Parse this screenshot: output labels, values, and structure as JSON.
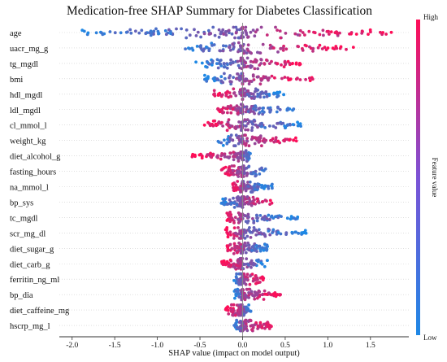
{
  "chart_data": {
    "type": "scatter",
    "title": "Medication-free SHAP Summary for Diabetes Classification",
    "xlabel": "SHAP value (impact on model output)",
    "xlim": [
      -2.15,
      1.95
    ],
    "xticks": [
      "-2.0",
      "-1.5",
      "-1.0",
      "-0.5",
      "0.0",
      "0.5",
      "1.0",
      "1.5"
    ],
    "xtick_values": [
      -2.0,
      -1.5,
      -1.0,
      -0.5,
      0.0,
      0.5,
      1.0,
      1.5
    ],
    "colorbar": {
      "label": "Feature value",
      "high": "High",
      "low": "Low",
      "color_low": "#1e88e5",
      "color_high": "#ff0d57"
    },
    "features": [
      {
        "name": "age",
        "neg_min": -1.9,
        "pos_max": 1.75,
        "neg_color": "low",
        "pos_color": "high"
      },
      {
        "name": "uacr_mg_g",
        "neg_min": -0.7,
        "pos_max": 1.3,
        "neg_color": "low",
        "pos_color": "high"
      },
      {
        "name": "tg_mgdl",
        "neg_min": -0.55,
        "pos_max": 0.7,
        "neg_color": "low",
        "pos_color": "high"
      },
      {
        "name": "bmi",
        "neg_min": -0.45,
        "pos_max": 0.85,
        "neg_color": "low",
        "pos_color": "high"
      },
      {
        "name": "hdl_mgdl",
        "neg_min": -0.35,
        "pos_max": 0.5,
        "neg_color": "high",
        "pos_color": "low"
      },
      {
        "name": "ldl_mgdl",
        "neg_min": -0.3,
        "pos_max": 0.6,
        "neg_color": "high",
        "pos_color": "low"
      },
      {
        "name": "cl_mmol_l",
        "neg_min": -0.45,
        "pos_max": 0.7,
        "neg_color": "high",
        "pos_color": "low"
      },
      {
        "name": "weight_kg",
        "neg_min": -0.3,
        "pos_max": 0.65,
        "neg_color": "low",
        "pos_color": "high"
      },
      {
        "name": "diet_alcohol_g",
        "neg_min": -0.6,
        "pos_max": 0.1,
        "neg_color": "high",
        "pos_color": "low"
      },
      {
        "name": "fasting_hours",
        "neg_min": -0.25,
        "pos_max": 0.3,
        "neg_color": "high",
        "pos_color": "low"
      },
      {
        "name": "na_mmol_l",
        "neg_min": -0.12,
        "pos_max": 0.35,
        "neg_color": "high",
        "pos_color": "low"
      },
      {
        "name": "bp_sys",
        "neg_min": -0.25,
        "pos_max": 0.35,
        "neg_color": "low",
        "pos_color": "high"
      },
      {
        "name": "tc_mgdl",
        "neg_min": -0.2,
        "pos_max": 0.65,
        "neg_color": "high",
        "pos_color": "low"
      },
      {
        "name": "scr_mg_dl",
        "neg_min": -0.2,
        "pos_max": 0.75,
        "neg_color": "high",
        "pos_color": "low"
      },
      {
        "name": "diet_sugar_g",
        "neg_min": -0.2,
        "pos_max": 0.3,
        "neg_color": "high",
        "pos_color": "low"
      },
      {
        "name": "diet_carb_g",
        "neg_min": -0.25,
        "pos_max": 0.3,
        "neg_color": "high",
        "pos_color": "low"
      },
      {
        "name": "ferritin_ng_ml",
        "neg_min": -0.1,
        "pos_max": 0.25,
        "neg_color": "low",
        "pos_color": "high"
      },
      {
        "name": "bp_dia",
        "neg_min": -0.1,
        "pos_max": 0.45,
        "neg_color": "low",
        "pos_color": "high"
      },
      {
        "name": "diet_caffeine_mg",
        "neg_min": -0.2,
        "pos_max": 0.1,
        "neg_color": "high",
        "pos_color": "low"
      },
      {
        "name": "hscrp_mg_l",
        "neg_min": -0.1,
        "pos_max": 0.35,
        "neg_color": "low",
        "pos_color": "high"
      }
    ]
  }
}
